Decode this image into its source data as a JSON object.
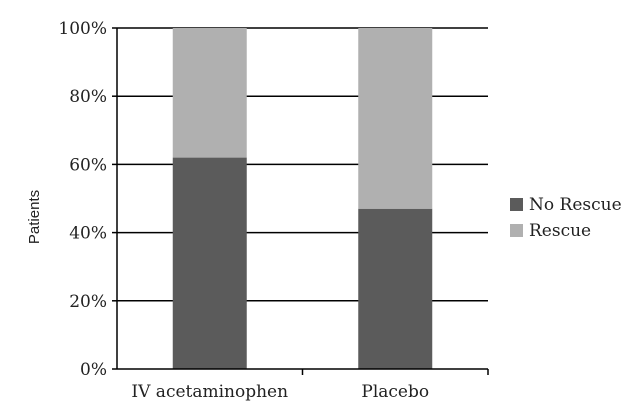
{
  "chart_data": {
    "type": "bar",
    "stacked": true,
    "categories": [
      "IV acetaminophen",
      "Placebo"
    ],
    "series": [
      {
        "name": "No Rescue",
        "values": [
          62,
          47
        ],
        "color": "#5b5b5b"
      },
      {
        "name": "Rescue",
        "values": [
          38,
          53
        ],
        "color": "#b0b0b0"
      }
    ],
    "ylabel": "Patients",
    "ylim": [
      0,
      100
    ],
    "yticks": [
      "0%",
      "20%",
      "40%",
      "60%",
      "80%",
      "100%"
    ],
    "grid": true,
    "legend_position": "right"
  }
}
